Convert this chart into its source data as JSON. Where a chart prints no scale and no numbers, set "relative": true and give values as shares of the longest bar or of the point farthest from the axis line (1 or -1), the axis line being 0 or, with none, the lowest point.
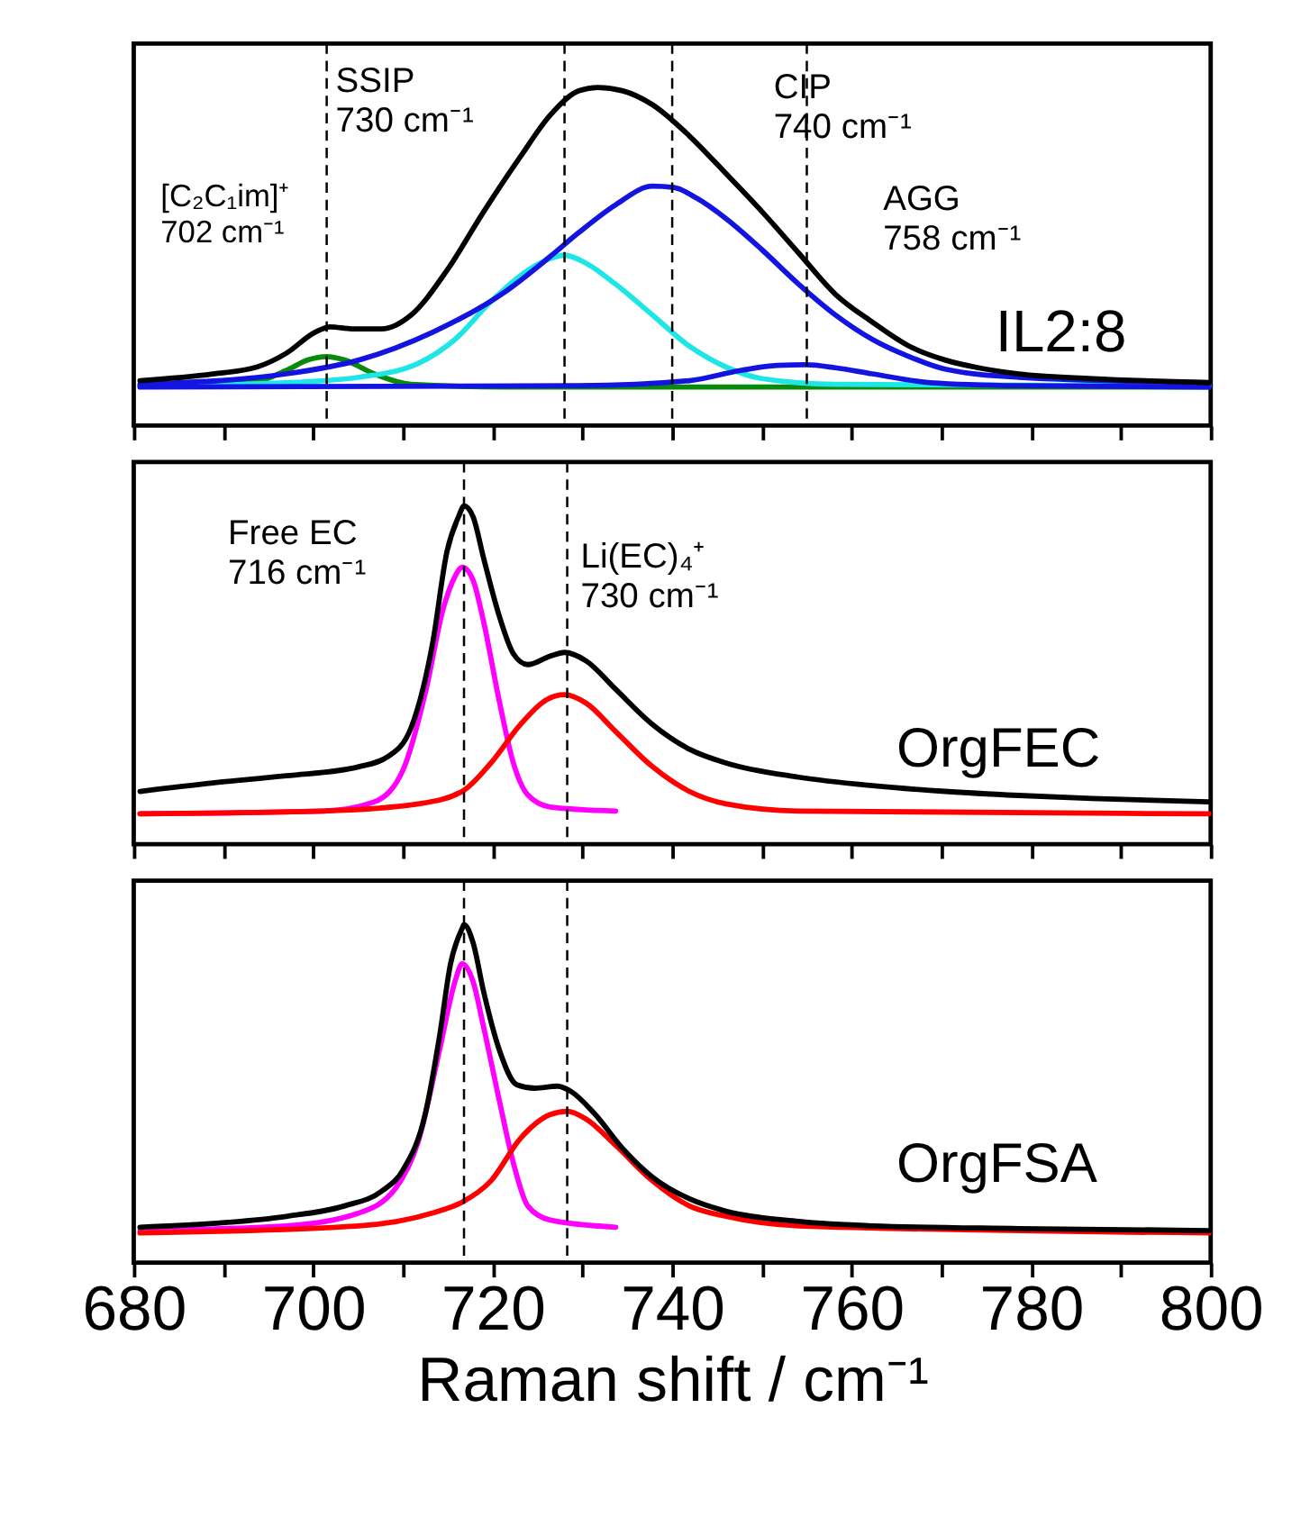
{
  "chart_data": [
    {
      "type": "line",
      "relative": true,
      "xlim": [
        680,
        800
      ],
      "tick_labels": false,
      "xticks": [
        680,
        {
          "value": 690,
          "label": null
        },
        700,
        {
          "value": 710,
          "label": null
        },
        720,
        {
          "value": 730,
          "label": null
        },
        740,
        {
          "value": 750,
          "label": null
        },
        760,
        {
          "value": 770,
          "label": null
        },
        780,
        {
          "value": 790,
          "label": null
        },
        800
      ],
      "series": [
        {
          "color": "#0a8a0a",
          "x": [
            680.7,
            692.9,
            697.0,
            699.4,
            701.5,
            703.5,
            706.8,
            710.9,
            721.5,
            799.8
          ],
          "values": [
            0.118,
            0.127,
            0.163,
            0.194,
            0.204,
            0.194,
            0.153,
            0.122,
            0.114,
            0.114
          ]
        },
        {
          "color": "#1ee6e6",
          "x": [
            680.7,
            697.0,
            705.1,
            711.7,
            715.8,
            719.8,
            723.9,
            726.4,
            728.0,
            730.4,
            733.7,
            737.8,
            741.9,
            746.0,
            750.0,
            758.2,
            799.8
          ],
          "values": [
            0.118,
            0.127,
            0.143,
            0.184,
            0.255,
            0.367,
            0.459,
            0.494,
            0.504,
            0.48,
            0.418,
            0.327,
            0.235,
            0.173,
            0.139,
            0.122,
            0.118
          ]
        },
        {
          "color": "#1414e0",
          "x": [
            680.7,
            729.6,
            741.9,
            747.6,
            751.7,
            754.9,
            758.2,
            762.3,
            768.8,
            778.6,
            799.8
          ],
          "values": [
            0.114,
            0.118,
            0.133,
            0.163,
            0.178,
            0.18,
            0.171,
            0.153,
            0.127,
            0.118,
            0.114
          ]
        },
        {
          "color": "#1414e0",
          "x": [
            680.7,
            697.0,
            705.1,
            713.3,
            721.5,
            726.4,
            729.6,
            733.7,
            737.8,
            740.2,
            742.7,
            746.0,
            750.0,
            754.1,
            758.2,
            762.3,
            766.4,
            770.4,
            778.6,
            799.8
          ],
          "values": [
            0.122,
            0.153,
            0.194,
            0.276,
            0.398,
            0.5,
            0.571,
            0.653,
            0.708,
            0.704,
            0.673,
            0.612,
            0.52,
            0.418,
            0.327,
            0.255,
            0.204,
            0.167,
            0.143,
            0.127
          ]
        },
        {
          "color": "#000000",
          "x": [
            680.7,
            688.8,
            693.7,
            697.0,
            700.2,
            701.9,
            704.3,
            707.6,
            710.9,
            714.9,
            719.0,
            723.1,
            726.4,
            729.6,
            731.7,
            734.5,
            737.8,
            741.9,
            746.0,
            750.0,
            754.1,
            758.2,
            762.3,
            766.4,
            770.4,
            774.5,
            778.6,
            786.8,
            799.8
          ],
          "values": [
            0.133,
            0.153,
            0.173,
            0.214,
            0.276,
            0.292,
            0.286,
            0.286,
            0.327,
            0.459,
            0.633,
            0.796,
            0.918,
            0.99,
            1.0,
            0.99,
            0.949,
            0.857,
            0.745,
            0.633,
            0.51,
            0.388,
            0.306,
            0.235,
            0.194,
            0.169,
            0.153,
            0.139,
            0.127
          ]
        }
      ],
      "ref_lines": [
        {
          "axis": "x",
          "value": 701.5,
          "line_style": "dashed",
          "color": "#000000"
        },
        {
          "axis": "x",
          "value": 728.0,
          "line_style": "dashed",
          "color": "#000000"
        },
        {
          "axis": "x",
          "value": 740.0,
          "line_style": "dashed",
          "color": "#000000"
        },
        {
          "axis": "x",
          "value": 755.0,
          "line_style": "dashed",
          "color": "#000000"
        }
      ],
      "annotations": [
        "[C₂C₁im]⁺\n702 cm⁻¹",
        "SSIP\n730 cm⁻¹",
        "CIP\n740 cm⁻¹",
        "AGG\n758 cm⁻¹",
        "IL2:8"
      ]
    },
    {
      "type": "line",
      "relative": true,
      "xlim": [
        680,
        800
      ],
      "tick_labels": false,
      "xticks": [
        680,
        {
          "value": 690,
          "label": null
        },
        700,
        {
          "value": 710,
          "label": null
        },
        720,
        {
          "value": 730,
          "label": null
        },
        740,
        {
          "value": 750,
          "label": null
        },
        760,
        {
          "value": 770,
          "label": null
        },
        780,
        {
          "value": 790,
          "label": null
        },
        800
      ],
      "series": [
        {
          "color": "#ff00ff",
          "x": [
            680.7,
            701.1,
            706.8,
            710.0,
            712.5,
            714.5,
            715.8,
            716.6,
            717.8,
            719.0,
            720.7,
            722.3,
            723.9,
            726.4,
            733.7
          ],
          "values": [
            0.09,
            0.098,
            0.125,
            0.219,
            0.448,
            0.698,
            0.792,
            0.819,
            0.781,
            0.656,
            0.427,
            0.24,
            0.146,
            0.11,
            0.098
          ]
        },
        {
          "color": "#ff0000",
          "x": [
            680.7,
            701.1,
            711.7,
            716.6,
            719.8,
            723.1,
            726.0,
            728.0,
            730.4,
            733.7,
            737.8,
            741.9,
            746.0,
            754.1,
            799.8
          ],
          "values": [
            0.09,
            0.098,
            0.119,
            0.156,
            0.24,
            0.354,
            0.427,
            0.442,
            0.417,
            0.333,
            0.229,
            0.156,
            0.119,
            0.098,
            0.09
          ]
        },
        {
          "color": "#000000",
          "x": [
            680.7,
            688.8,
            697.0,
            705.1,
            708.4,
            710.9,
            713.3,
            714.9,
            716.2,
            716.8,
            717.8,
            719.0,
            720.7,
            722.3,
            723.9,
            726.4,
            728.0,
            730.4,
            733.7,
            737.8,
            741.9,
            746.0,
            754.1,
            762.3,
            770.4,
            778.6,
            786.8,
            799.8
          ],
          "values": [
            0.156,
            0.181,
            0.202,
            0.229,
            0.26,
            0.344,
            0.594,
            0.865,
            0.969,
            1.0,
            0.969,
            0.844,
            0.677,
            0.563,
            0.531,
            0.556,
            0.567,
            0.542,
            0.458,
            0.354,
            0.281,
            0.24,
            0.198,
            0.173,
            0.156,
            0.144,
            0.135,
            0.125
          ]
        }
      ],
      "ref_lines": [
        {
          "axis": "x",
          "value": 716.8,
          "line_style": "dashed",
          "color": "#000000"
        },
        {
          "axis": "x",
          "value": 728.3,
          "line_style": "dashed",
          "color": "#000000"
        }
      ],
      "annotations": [
        "Free EC\n716 cm⁻¹",
        "Li(EC)₄⁺\n730 cm⁻¹",
        "OrgFEC"
      ]
    },
    {
      "type": "line",
      "relative": true,
      "xlim": [
        680,
        800
      ],
      "tick_labels": "x",
      "xlabel": "Raman shift / cm⁻¹",
      "xticks": [
        680,
        {
          "value": 690,
          "label": null
        },
        700,
        {
          "value": 710,
          "label": null
        },
        720,
        {
          "value": 730,
          "label": null
        },
        740,
        {
          "value": 750,
          "label": null
        },
        760,
        {
          "value": 770,
          "label": null
        },
        780,
        {
          "value": 790,
          "label": null
        },
        800
      ],
      "series": [
        {
          "color": "#ff00ff",
          "x": [
            680.7,
            697.0,
            705.1,
            709.2,
            711.7,
            714.1,
            715.8,
            716.6,
            717.8,
            719.0,
            720.7,
            722.3,
            723.9,
            726.4,
            733.7
          ],
          "values": [
            0.095,
            0.109,
            0.147,
            0.221,
            0.358,
            0.632,
            0.832,
            0.884,
            0.832,
            0.695,
            0.484,
            0.295,
            0.168,
            0.126,
            0.105
          ]
        },
        {
          "color": "#ff0000",
          "x": [
            680.7,
            705.1,
            713.3,
            716.6,
            719.8,
            723.1,
            726.4,
            728.3,
            730.4,
            733.7,
            737.8,
            741.9,
            746.0,
            754.1,
            799.8
          ],
          "values": [
            0.088,
            0.109,
            0.147,
            0.179,
            0.242,
            0.368,
            0.438,
            0.448,
            0.425,
            0.347,
            0.242,
            0.168,
            0.137,
            0.109,
            0.088
          ]
        },
        {
          "color": "#000000",
          "x": [
            680.7,
            688.8,
            697.0,
            703.5,
            707.6,
            710.0,
            712.5,
            714.1,
            715.3,
            716.6,
            716.8,
            717.8,
            719.0,
            720.7,
            722.7,
            724.7,
            727.2,
            728.8,
            731.3,
            734.5,
            737.8,
            741.9,
            746.0,
            754.1,
            762.3,
            778.6,
            799.8
          ],
          "values": [
            0.105,
            0.116,
            0.137,
            0.168,
            0.211,
            0.274,
            0.442,
            0.674,
            0.884,
            0.989,
            1.0,
            0.947,
            0.8,
            0.632,
            0.526,
            0.516,
            0.522,
            0.505,
            0.442,
            0.337,
            0.253,
            0.189,
            0.152,
            0.122,
            0.109,
            0.101,
            0.095
          ]
        }
      ],
      "ref_lines": [
        {
          "axis": "x",
          "value": 716.8,
          "line_style": "dashed",
          "color": "#000000"
        },
        {
          "axis": "x",
          "value": 728.3,
          "line_style": "dashed",
          "color": "#000000"
        }
      ],
      "annotations": [
        "OrgFSA"
      ]
    }
  ]
}
